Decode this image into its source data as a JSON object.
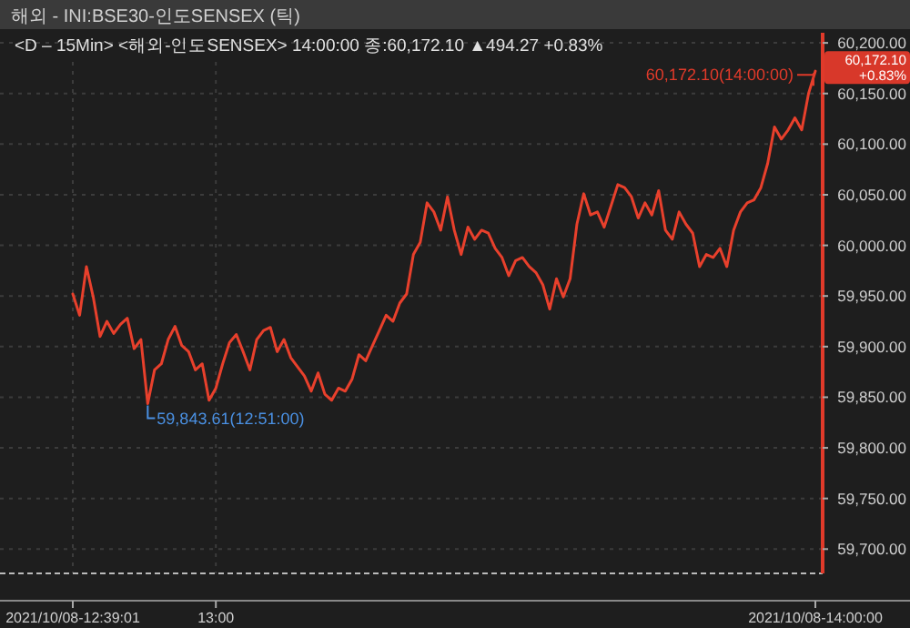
{
  "chart_data": {
    "type": "line",
    "title": "해외 - INI:BSE30-인도SENSEX (틱)",
    "subtitle": "<D – 15Min> <해외-인도SENSEX> 14:00:00 종:60,172.10 ▲494.27 +0.83%",
    "categories": [
      "2021/10/08-12:39:01",
      null,
      null,
      null,
      null,
      null,
      null,
      null,
      null,
      null,
      null,
      null,
      null,
      null,
      null,
      null,
      null,
      null,
      null,
      null,
      null,
      "13:00",
      null,
      null,
      null,
      null,
      null,
      null,
      null,
      null,
      null,
      null,
      null,
      null,
      null,
      null,
      null,
      null,
      null,
      null,
      null,
      null,
      null,
      null,
      null,
      null,
      null,
      null,
      null,
      null,
      null,
      null,
      null,
      null,
      null,
      null,
      null,
      null,
      null,
      null,
      null,
      null,
      null,
      null,
      null,
      null,
      null,
      null,
      null,
      null,
      null,
      null,
      null,
      null,
      null,
      null,
      null,
      null,
      null,
      null,
      null,
      null,
      null,
      null,
      null,
      null,
      null,
      null,
      null,
      null,
      null,
      null,
      null,
      null,
      null,
      null,
      null,
      null,
      null,
      null,
      null,
      null,
      null,
      null,
      null,
      null,
      null,
      null,
      null,
      "2021/10/08-14:00:00"
    ],
    "series": [
      {
        "color": "#e8402c",
        "values": [
          59952,
          59931,
          59979,
          59949,
          59910,
          59925,
          59913,
          59922,
          59928,
          59898,
          59907,
          59843.61,
          59877,
          59883,
          59907,
          59920,
          59901,
          59895,
          59877,
          59883,
          59847,
          59859,
          59883,
          59904,
          59912,
          59895,
          59877,
          59907,
          59916,
          59919,
          59895,
          59907,
          59889,
          59880,
          59871,
          59856,
          59874,
          59853,
          59847,
          59859,
          59856,
          59868,
          59892,
          59886,
          59901,
          59916,
          59931,
          59925,
          59943,
          59952,
          59991,
          60003,
          60042,
          60033,
          60015,
          60048,
          60015,
          59991,
          60018,
          60006,
          60015,
          60012,
          59997,
          59988,
          59970,
          59985,
          59988,
          59979,
          59973,
          59961,
          59937,
          59967,
          59949,
          59967,
          60021,
          60051,
          60030,
          60033,
          60018,
          60039,
          60060,
          60057,
          60048,
          60027,
          60042,
          60030,
          60054,
          60015,
          60006,
          60033,
          60021,
          60012,
          59979,
          59991,
          59988,
          59997,
          59979,
          60015,
          60033,
          60042,
          60045,
          60057,
          60081,
          60117,
          60105,
          60114,
          60126,
          60114,
          60150,
          60172.1
        ]
      }
    ],
    "ylim": [
      59676,
      60210
    ],
    "yticks": [
      {
        "value": 59700,
        "label": "59,700.00"
      },
      {
        "value": 59750,
        "label": "59,750.00"
      },
      {
        "value": 59800,
        "label": "59,800.00"
      },
      {
        "value": 59850,
        "label": "59,850.00"
      },
      {
        "value": 59900,
        "label": "59,900.00"
      },
      {
        "value": 59950,
        "label": "59,950.00"
      },
      {
        "value": 60000,
        "label": "60,000.00"
      },
      {
        "value": 60050,
        "label": "60,050.00"
      },
      {
        "value": 60100,
        "label": "60,100.00"
      },
      {
        "value": 60150,
        "label": "60,150.00"
      },
      {
        "value": 60200,
        "label": "60,200.00"
      }
    ],
    "annotations": [
      "59,843.61(12:51:00)",
      {
        "text": "60,172.10(14:00:00)",
        "x": "2021/10/08-14:00:00",
        "y": 60172.1
      },
      "60,172.10",
      "+0.83%"
    ],
    "grid": true,
    "marker": "none",
    "line_style": "solid"
  }
}
